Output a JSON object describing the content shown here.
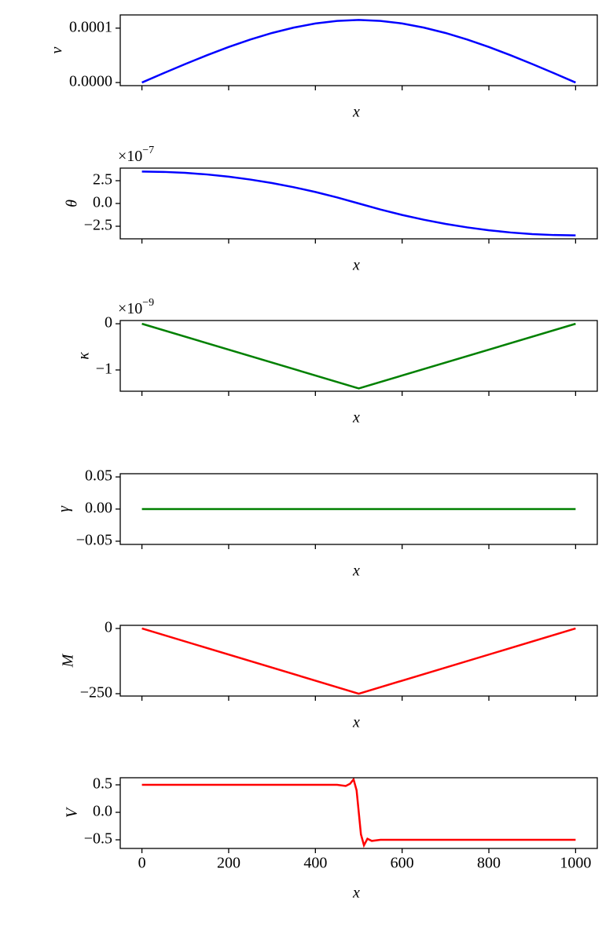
{
  "chart_data": [
    {
      "type": "line",
      "ylabel": "v",
      "xlabel": "x",
      "color": "#0000ff",
      "x": [
        0,
        50,
        100,
        150,
        200,
        250,
        300,
        350,
        400,
        450,
        500,
        550,
        600,
        650,
        700,
        750,
        800,
        850,
        900,
        950,
        1000
      ],
      "values": [
        0,
        1.72e-05,
        3.4e-05,
        5.02e-05,
        6.53e-05,
        7.91e-05,
        9.11e-05,
        0.000101,
        0.0001086,
        0.0001133,
        0.000115,
        0.0001133,
        0.0001086,
        0.000101,
        9.11e-05,
        7.91e-05,
        6.53e-05,
        5.02e-05,
        3.4e-05,
        1.72e-05,
        0
      ],
      "xlim": [
        -50,
        1050
      ],
      "xticks": [
        0,
        200,
        400,
        600,
        800,
        1000
      ],
      "xtick_labels": false,
      "ylim": [
        -5.7e-06,
        0.0001243
      ],
      "yticks": [
        {
          "value": 0,
          "label": "0.0000"
        },
        {
          "value": 0.0001,
          "label": "0.0001"
        }
      ]
    },
    {
      "type": "line",
      "ylabel": "θ",
      "xlabel": "x",
      "color": "#0000ff",
      "y_offset": "×10",
      "y_offset_exponent": "−7",
      "x": [
        0,
        50,
        100,
        150,
        200,
        250,
        300,
        350,
        400,
        450,
        500,
        550,
        600,
        650,
        700,
        750,
        800,
        850,
        900,
        950,
        1000
      ],
      "values": [
        3.5,
        3.465,
        3.36,
        3.185,
        2.94,
        2.625,
        2.24,
        1.785,
        1.26,
        0.665,
        0,
        -0.665,
        -1.26,
        -1.785,
        -2.24,
        -2.625,
        -2.94,
        -3.185,
        -3.36,
        -3.465,
        -3.5
      ],
      "xlim": [
        -50,
        1050
      ],
      "xticks": [
        0,
        200,
        400,
        600,
        800,
        1000
      ],
      "xtick_labels": false,
      "ylim": [
        -3.88,
        3.88
      ],
      "yticks": [
        {
          "value": -2.5,
          "label": "−2.5"
        },
        {
          "value": 0,
          "label": "0.0"
        },
        2.5
      ]
    },
    {
      "type": "line",
      "ylabel": "κ",
      "xlabel": "x",
      "color": "#008000",
      "y_offset": "×10",
      "y_offset_exponent": "−9",
      "x": [
        0,
        500,
        1000
      ],
      "values": [
        0,
        -1.4,
        0
      ],
      "xlim": [
        -50,
        1050
      ],
      "xticks": [
        0,
        200,
        400,
        600,
        800,
        1000
      ],
      "xtick_labels": false,
      "ylim": [
        -1.46,
        0.07
      ],
      "yticks": [
        {
          "value": -1,
          "label": "−1"
        },
        0
      ]
    },
    {
      "type": "line",
      "ylabel": "γ",
      "xlabel": "x",
      "color": "#008000",
      "x": [
        0,
        1000
      ],
      "values": [
        0,
        0
      ],
      "xlim": [
        -50,
        1050
      ],
      "xticks": [
        0,
        200,
        400,
        600,
        800,
        1000
      ],
      "xtick_labels": false,
      "ylim": [
        -0.055,
        0.055
      ],
      "yticks": [
        {
          "value": -0.05,
          "label": "−0.05"
        },
        {
          "value": 0,
          "label": "0.00"
        },
        0.05
      ]
    },
    {
      "type": "line",
      "ylabel": "M",
      "xlabel": "x",
      "color": "#ff0000",
      "x": [
        0,
        500,
        1000
      ],
      "values": [
        0,
        -250,
        0
      ],
      "xlim": [
        -50,
        1050
      ],
      "xticks": [
        0,
        200,
        400,
        600,
        800,
        1000
      ],
      "xtick_labels": false,
      "ylim": [
        -259,
        12
      ],
      "yticks": [
        {
          "value": -250,
          "label": "−250"
        },
        0
      ]
    },
    {
      "type": "line",
      "ylabel": "V",
      "xlabel": "x",
      "color": "#ff0000",
      "x": [
        0,
        100,
        200,
        300,
        400,
        450,
        470,
        480,
        488,
        495,
        500,
        505,
        512,
        520,
        530,
        550,
        600,
        700,
        800,
        900,
        1000
      ],
      "values": [
        0.5,
        0.5,
        0.5,
        0.5,
        0.5,
        0.5,
        0.48,
        0.52,
        0.6,
        0.4,
        0,
        -0.4,
        -0.6,
        -0.48,
        -0.52,
        -0.5,
        -0.5,
        -0.5,
        -0.5,
        -0.5,
        -0.5
      ],
      "xlim": [
        -50,
        1050
      ],
      "xticks": [
        0,
        200,
        400,
        600,
        800,
        1000
      ],
      "xtick_labels": true,
      "ylim": [
        -0.657,
        0.629
      ],
      "yticks": [
        {
          "value": -0.5,
          "label": "−0.5"
        },
        {
          "value": 0,
          "label": "0.0"
        },
        0.5
      ]
    }
  ]
}
